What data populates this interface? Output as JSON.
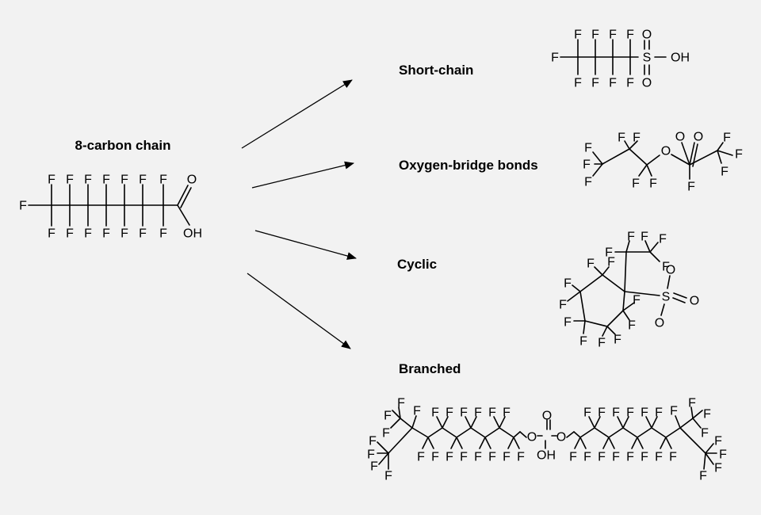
{
  "source": {
    "label": "8-carbon chain"
  },
  "categories": [
    {
      "key": "short",
      "label": "Short-chain"
    },
    {
      "key": "oxygen",
      "label": "Oxygen-bridge bonds"
    },
    {
      "key": "cyclic",
      "label": "Cyclic"
    },
    {
      "key": "branched",
      "label": "Branched"
    }
  ],
  "atoms": {
    "fluorine": "F",
    "oxygen": "O",
    "sulfur": "S",
    "hydroxyl": "OH",
    "carbonyl": "O"
  },
  "colors": {
    "background": "#f2f2f2",
    "ink": "#000000"
  }
}
